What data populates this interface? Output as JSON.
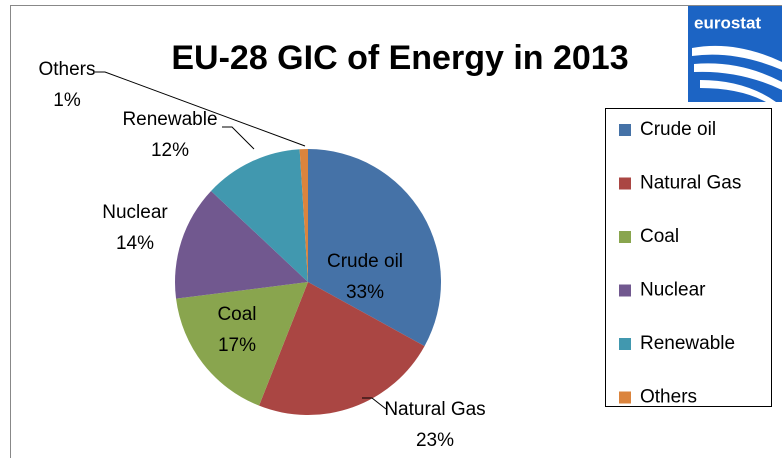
{
  "chart_data": {
    "type": "pie",
    "title": "EU-28 GIC of Energy in 2013",
    "categories": [
      "Crude oil",
      "Natural Gas",
      "Coal",
      "Nuclear",
      "Renewable",
      "Others"
    ],
    "values": [
      33,
      23,
      17,
      14,
      12,
      1
    ],
    "value_labels": [
      "33%",
      "23%",
      "17%",
      "14%",
      "12%",
      "1%"
    ],
    "colors": [
      "#4572a7",
      "#aa4643",
      "#89a54e",
      "#71588f",
      "#4198af",
      "#db843d"
    ],
    "legend": "right"
  },
  "logo": {
    "text": "eurostat"
  }
}
